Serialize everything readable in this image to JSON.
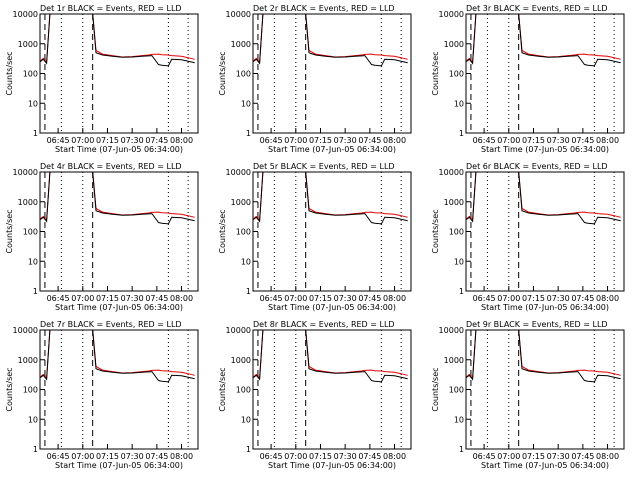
{
  "colors": {
    "events": "#000000",
    "lld": "#e00000",
    "background": "#ffffff"
  },
  "chart_data": [
    {
      "type": "line",
      "title": "Det 1r BLACK = Events, RED = LLD",
      "xlabel": "Start Time (07-Jun-05 06:34:00)",
      "ylabel": "Counts/sec",
      "x_tick_labels": [
        "06:45",
        "07:00",
        "07:15",
        "07:30",
        "07:45",
        "08:00"
      ],
      "y_tick_labels": [
        "1",
        "10",
        "100",
        "1000",
        "10000"
      ],
      "ylim": [
        1,
        10000
      ],
      "yscale": "log",
      "x_tick_positions_label_note": "",
      "x_tick_values": [
        "06:45",
        "07:00",
        "07:15",
        "07:30",
        "07:45",
        "08:00"
      ],
      "series": [
        {
          "name": "Events",
          "color": "#000000",
          "x": [
            "06:34",
            "06:36",
            "06:38",
            "06:40",
            "06:42",
            "06:44",
            "06:46",
            "07:06",
            "07:08",
            "07:12",
            "07:18",
            "07:24",
            "07:30",
            "07:36",
            "07:40",
            "07:42",
            "07:46",
            "07:48",
            "07:52",
            "07:54",
            "08:00",
            "08:04",
            "08:08"
          ],
          "values": [
            250,
            300,
            220,
            10000,
            10000,
            10000,
            10000,
            10000,
            500,
            420,
            380,
            350,
            360,
            380,
            390,
            400,
            200,
            190,
            180,
            300,
            290,
            260,
            230
          ]
        },
        {
          "name": "LLD",
          "color": "#e00000",
          "x": [
            "06:34",
            "06:36",
            "06:38",
            "06:40",
            "06:42",
            "06:44",
            "06:46",
            "07:06",
            "07:08",
            "07:12",
            "07:18",
            "07:24",
            "07:30",
            "07:36",
            "07:40",
            "07:42",
            "07:46",
            "07:48",
            "07:52",
            "07:54",
            "08:00",
            "08:04",
            "08:08"
          ],
          "values": [
            260,
            320,
            240,
            10000,
            10000,
            10000,
            10000,
            10000,
            600,
            450,
            400,
            360,
            370,
            400,
            420,
            440,
            450,
            430,
            420,
            400,
            380,
            340,
            300
          ]
        }
      ]
    },
    {
      "type": "line",
      "title": "Det 2r BLACK = Events, RED = LLD",
      "xlabel": "Start Time (07-Jun-05 06:34:00)",
      "ylabel": "Counts/sec",
      "x_tick_labels": [
        "06:45",
        "07:00",
        "07:15",
        "07:30",
        "07:45",
        "08:00"
      ],
      "y_tick_labels": [
        "1",
        "10",
        "100",
        "1000",
        "10000"
      ],
      "ylim": [
        1,
        10000
      ],
      "yscale": "log",
      "series": [
        {
          "name": "Events",
          "color": "#000000",
          "values": [
            250,
            300,
            220,
            10000,
            10000,
            10000,
            10000,
            10000,
            500,
            420,
            380,
            350,
            360,
            380,
            390,
            400,
            200,
            190,
            180,
            300,
            290,
            260,
            230
          ]
        },
        {
          "name": "LLD",
          "color": "#e00000",
          "values": [
            260,
            320,
            240,
            10000,
            10000,
            10000,
            10000,
            10000,
            600,
            450,
            400,
            360,
            370,
            400,
            420,
            440,
            450,
            430,
            420,
            400,
            380,
            340,
            300
          ]
        }
      ]
    },
    {
      "type": "line",
      "title": "Det 3r BLACK = Events, RED = LLD",
      "xlabel": "Start Time (07-Jun-05 06:34:00)",
      "ylabel": "Counts/sec",
      "x_tick_labels": [
        "06:45",
        "07:00",
        "07:15",
        "07:30",
        "07:45",
        "08:00"
      ],
      "y_tick_labels": [
        "1",
        "10",
        "100",
        "1000",
        "10000"
      ],
      "ylim": [
        1,
        10000
      ],
      "yscale": "log",
      "series": [
        {
          "name": "Events",
          "color": "#000000",
          "values": [
            250,
            300,
            220,
            10000,
            10000,
            10000,
            10000,
            10000,
            500,
            420,
            380,
            350,
            360,
            380,
            390,
            400,
            200,
            190,
            180,
            300,
            290,
            260,
            230
          ]
        },
        {
          "name": "LLD",
          "color": "#e00000",
          "values": [
            260,
            320,
            240,
            10000,
            10000,
            10000,
            10000,
            10000,
            600,
            450,
            400,
            360,
            370,
            400,
            420,
            440,
            450,
            430,
            420,
            400,
            380,
            340,
            300
          ]
        }
      ]
    },
    {
      "type": "line",
      "title": "Det 4r BLACK = Events, RED = LLD",
      "xlabel": "Start Time (07-Jun-05 06:34:00)",
      "ylabel": "Counts/sec",
      "x_tick_labels": [
        "06:45",
        "07:00",
        "07:15",
        "07:30",
        "07:45",
        "08:00"
      ],
      "y_tick_labels": [
        "1",
        "10",
        "100",
        "1000",
        "10000"
      ],
      "ylim": [
        1,
        10000
      ],
      "yscale": "log",
      "series": [
        {
          "name": "Events",
          "color": "#000000",
          "values": [
            250,
            300,
            220,
            10000,
            10000,
            10000,
            10000,
            10000,
            500,
            420,
            380,
            350,
            360,
            380,
            390,
            400,
            200,
            190,
            180,
            300,
            290,
            260,
            230
          ]
        },
        {
          "name": "LLD",
          "color": "#e00000",
          "values": [
            260,
            320,
            240,
            10000,
            10000,
            10000,
            10000,
            10000,
            600,
            450,
            400,
            360,
            370,
            400,
            420,
            440,
            450,
            430,
            420,
            400,
            380,
            340,
            300
          ]
        }
      ]
    },
    {
      "type": "line",
      "title": "Det 5r BLACK = Events, RED = LLD",
      "xlabel": "Start Time (07-Jun-05 06:34:00)",
      "ylabel": "Counts/sec",
      "x_tick_labels": [
        "06:45",
        "07:00",
        "07:15",
        "07:30",
        "07:45",
        "08:00"
      ],
      "y_tick_labels": [
        "1",
        "10",
        "100",
        "1000",
        "10000"
      ],
      "ylim": [
        1,
        10000
      ],
      "yscale": "log",
      "series": [
        {
          "name": "Events",
          "color": "#000000",
          "values": [
            250,
            300,
            220,
            10000,
            10000,
            10000,
            10000,
            10000,
            500,
            420,
            380,
            350,
            360,
            380,
            390,
            400,
            200,
            190,
            180,
            300,
            290,
            260,
            230
          ]
        },
        {
          "name": "LLD",
          "color": "#e00000",
          "values": [
            260,
            320,
            240,
            10000,
            10000,
            10000,
            10000,
            10000,
            600,
            450,
            400,
            360,
            370,
            400,
            420,
            440,
            450,
            430,
            420,
            400,
            380,
            340,
            300
          ]
        }
      ]
    },
    {
      "type": "line",
      "title": "Det 6r BLACK = Events, RED = LLD",
      "xlabel": "Start Time (07-Jun-05 06:34:00)",
      "ylabel": "Counts/sec",
      "x_tick_labels": [
        "06:45",
        "07:00",
        "07:15",
        "07:30",
        "07:45",
        "08:00"
      ],
      "y_tick_labels": [
        "1",
        "10",
        "100",
        "1000",
        "10000"
      ],
      "ylim": [
        1,
        10000
      ],
      "yscale": "log",
      "series": [
        {
          "name": "Events",
          "color": "#000000",
          "values": [
            250,
            300,
            220,
            10000,
            10000,
            10000,
            10000,
            10000,
            500,
            420,
            380,
            350,
            360,
            380,
            390,
            400,
            200,
            190,
            180,
            300,
            290,
            260,
            230
          ]
        },
        {
          "name": "LLD",
          "color": "#e00000",
          "values": [
            260,
            320,
            240,
            10000,
            10000,
            10000,
            10000,
            10000,
            600,
            450,
            400,
            360,
            370,
            400,
            420,
            440,
            450,
            430,
            420,
            400,
            380,
            340,
            300
          ]
        }
      ]
    },
    {
      "type": "line",
      "title": "Det 7r BLACK = Events, RED = LLD",
      "xlabel": "Start Time (07-Jun-05 06:34:00)",
      "ylabel": "Counts/sec",
      "x_tick_labels": [
        "06:45",
        "07:00",
        "07:15",
        "07:30",
        "07:45",
        "08:00"
      ],
      "y_tick_labels": [
        "1",
        "10",
        "100",
        "1000",
        "10000"
      ],
      "ylim": [
        1,
        10000
      ],
      "yscale": "log",
      "series": [
        {
          "name": "Events",
          "color": "#000000",
          "values": [
            250,
            300,
            220,
            10000,
            10000,
            10000,
            10000,
            10000,
            500,
            420,
            380,
            350,
            360,
            380,
            390,
            400,
            200,
            190,
            180,
            300,
            290,
            260,
            230
          ]
        },
        {
          "name": "LLD",
          "color": "#e00000",
          "values": [
            260,
            320,
            240,
            10000,
            10000,
            10000,
            10000,
            10000,
            600,
            450,
            400,
            360,
            370,
            400,
            420,
            440,
            450,
            430,
            420,
            400,
            380,
            340,
            300
          ]
        }
      ]
    },
    {
      "type": "line",
      "title": "Det 8r BLACK = Events, RED = LLD",
      "xlabel": "Start Time (07-Jun-05 06:34:00)",
      "ylabel": "Counts/sec",
      "x_tick_labels": [
        "06:45",
        "07:00",
        "07:15",
        "07:30",
        "07:45",
        "08:00"
      ],
      "y_tick_labels": [
        "1",
        "10",
        "100",
        "1000",
        "10000"
      ],
      "ylim": [
        1,
        10000
      ],
      "yscale": "log",
      "series": [
        {
          "name": "Events",
          "color": "#000000",
          "values": [
            250,
            300,
            220,
            10000,
            10000,
            10000,
            10000,
            10000,
            500,
            420,
            380,
            350,
            360,
            380,
            390,
            400,
            200,
            190,
            180,
            300,
            290,
            260,
            230
          ]
        },
        {
          "name": "LLD",
          "color": "#e00000",
          "values": [
            260,
            320,
            240,
            10000,
            10000,
            10000,
            10000,
            10000,
            600,
            450,
            400,
            360,
            370,
            400,
            420,
            440,
            450,
            430,
            420,
            400,
            380,
            340,
            300
          ]
        }
      ]
    },
    {
      "type": "line",
      "title": "Det 9r BLACK = Events, RED = LLD",
      "xlabel": "Start Time (07-Jun-05 06:34:00)",
      "ylabel": "Counts/sec",
      "x_tick_labels": [
        "06:45",
        "07:00",
        "07:15",
        "07:30",
        "07:45",
        "08:00"
      ],
      "y_tick_labels": [
        "1",
        "10",
        "100",
        "1000",
        "10000"
      ],
      "ylim": [
        1,
        10000
      ],
      "yscale": "log",
      "series": [
        {
          "name": "Events",
          "color": "#000000",
          "values": [
            250,
            300,
            220,
            10000,
            10000,
            10000,
            10000,
            10000,
            500,
            420,
            380,
            350,
            360,
            380,
            390,
            400,
            200,
            190,
            180,
            300,
            290,
            260,
            230
          ]
        },
        {
          "name": "LLD",
          "color": "#e00000",
          "values": [
            260,
            320,
            240,
            10000,
            10000,
            10000,
            10000,
            10000,
            600,
            450,
            400,
            360,
            370,
            400,
            420,
            440,
            450,
            430,
            420,
            400,
            380,
            340,
            300
          ]
        }
      ]
    }
  ]
}
